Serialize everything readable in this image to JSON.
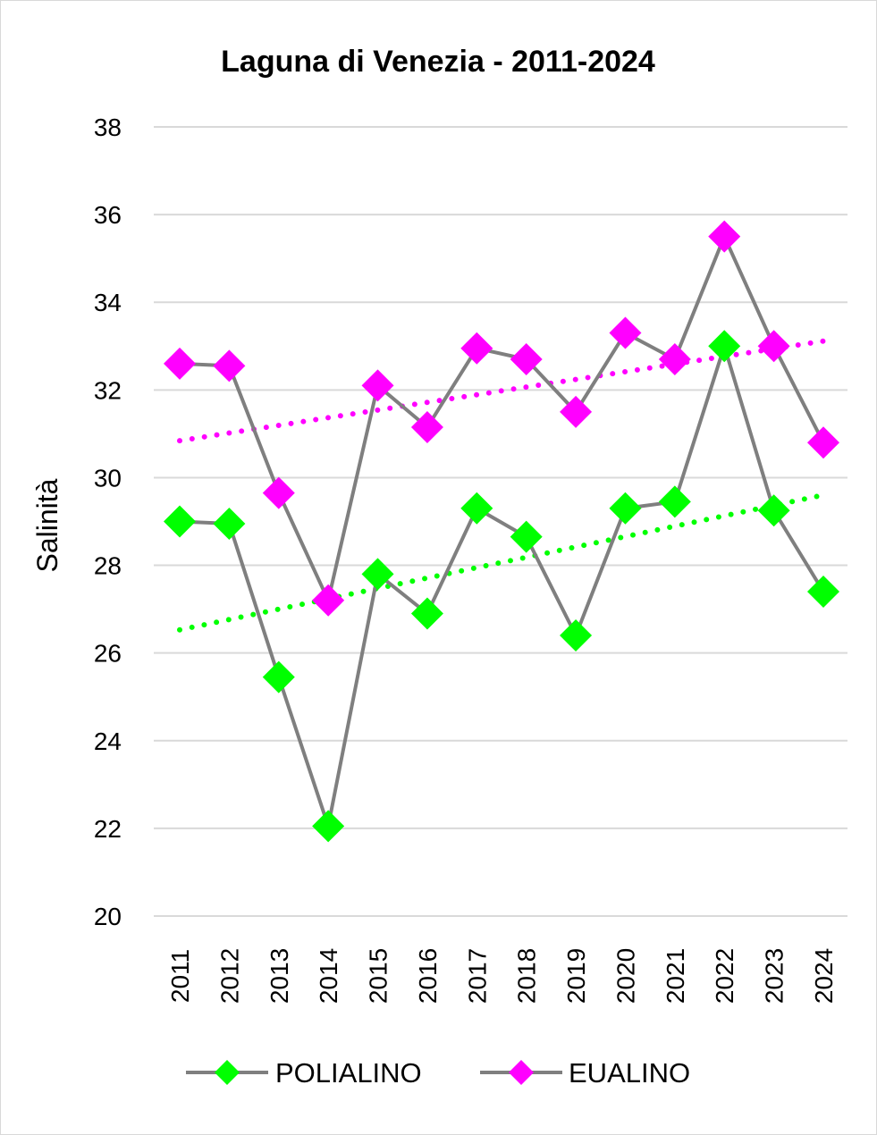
{
  "chart_data": {
    "type": "line",
    "title": "Laguna di Venezia - 2011-2024",
    "xlabel": "",
    "ylabel": "Salinità",
    "ylim": [
      20,
      38
    ],
    "yticks": [
      "20",
      "22",
      "24",
      "26",
      "28",
      "30",
      "32",
      "34",
      "36",
      "38"
    ],
    "grid": true,
    "legend_position": "bottom",
    "categories": [
      "2011",
      "2012",
      "2013",
      "2014",
      "2015",
      "2016",
      "2017",
      "2018",
      "2019",
      "2020",
      "2021",
      "2022",
      "2023",
      "2024"
    ],
    "series": [
      {
        "name": "POLIALINO",
        "marker_color": "#00ff00",
        "line_color": "#7f7f7f",
        "trendline": "linear",
        "values": [
          29.0,
          28.95,
          25.45,
          22.05,
          27.8,
          26.9,
          29.3,
          28.65,
          26.4,
          29.3,
          29.45,
          33.0,
          29.25,
          27.4
        ]
      },
      {
        "name": "EUALINO",
        "marker_color": "#ff00ff",
        "line_color": "#7f7f7f",
        "trendline": "linear",
        "values": [
          32.6,
          32.55,
          29.65,
          27.2,
          32.1,
          31.15,
          32.95,
          32.7,
          31.5,
          33.3,
          32.7,
          35.5,
          33.0,
          30.8
        ]
      }
    ]
  }
}
